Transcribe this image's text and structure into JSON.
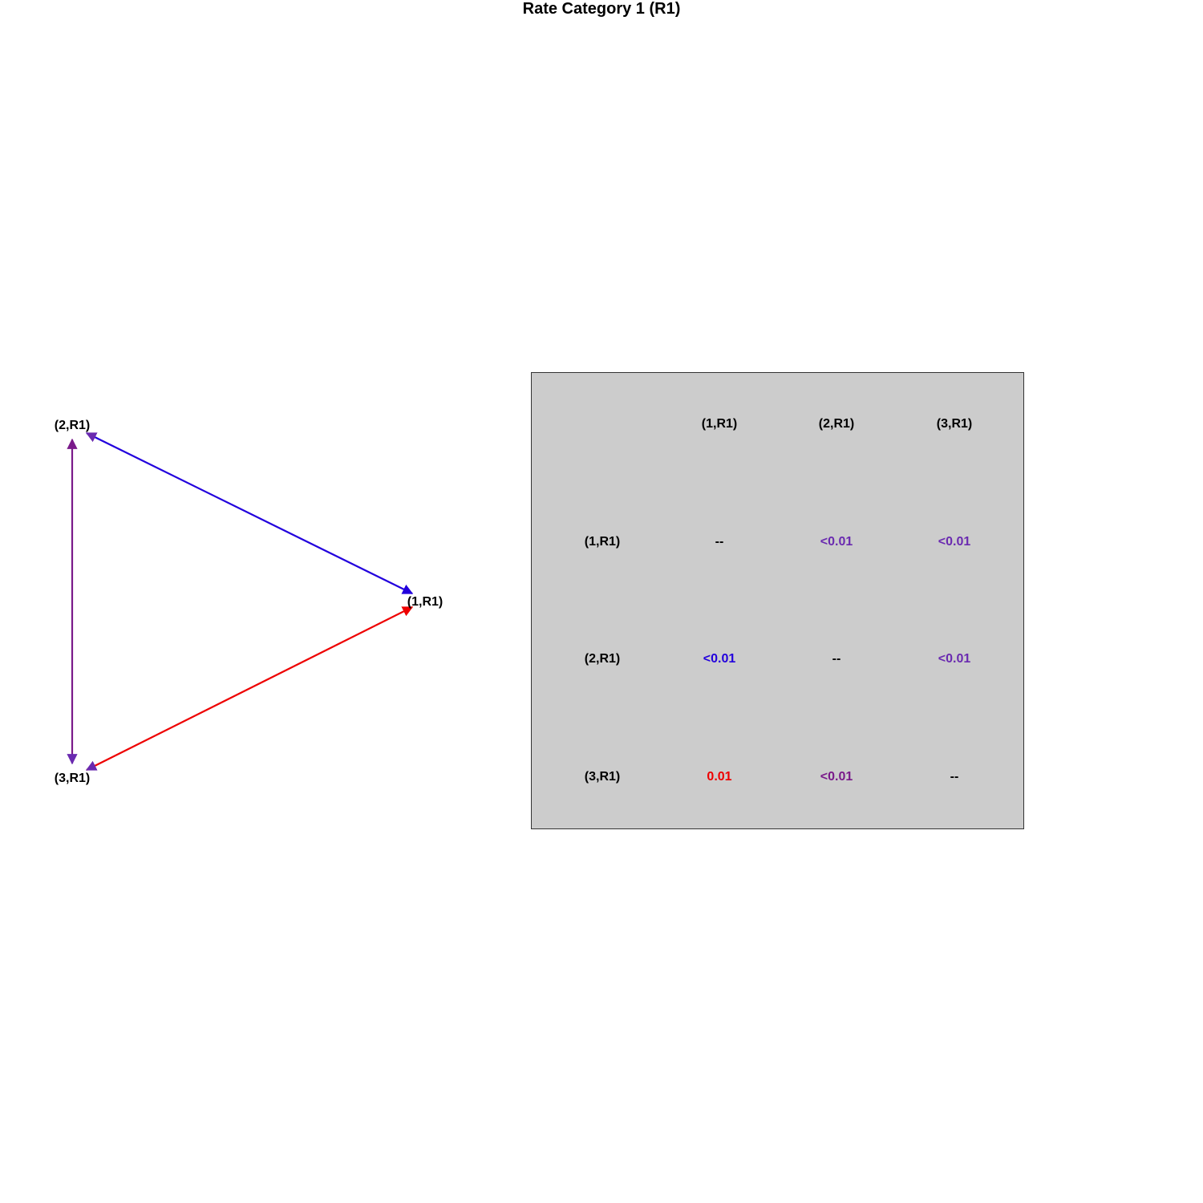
{
  "title": "Rate Category 1 (R1)",
  "colors": {
    "blue": "#2200dd",
    "red": "#ee0000",
    "purple": "#6a2ab0",
    "dark_purple": "#7a1a8a",
    "panel_bg": "#cccccc"
  },
  "graph": {
    "nodes": [
      {
        "id": "n1",
        "label": "(1,R1)"
      },
      {
        "id": "n2",
        "label": "(2,R1)"
      },
      {
        "id": "n3",
        "label": "(3,R1)"
      }
    ],
    "edges": [
      {
        "from": "n2",
        "to": "n1",
        "color": "blue",
        "arrow_from": true,
        "arrow_to": true
      },
      {
        "from": "n3",
        "to": "n1",
        "color": "red",
        "arrow_from": true,
        "arrow_to": true
      },
      {
        "from": "n2",
        "to": "n3",
        "color": "dark_purple",
        "arrow_from": true,
        "arrow_to": true
      }
    ]
  },
  "matrix": {
    "col_headers": [
      "(1,R1)",
      "(2,R1)",
      "(3,R1)"
    ],
    "row_headers": [
      "(1,R1)",
      "(2,R1)",
      "(3,R1)"
    ],
    "cells": [
      [
        {
          "text": "--",
          "color": "#000000"
        },
        {
          "text": "<0.01",
          "color": "#6a2ab0"
        },
        {
          "text": "<0.01",
          "color": "#6a2ab0"
        }
      ],
      [
        {
          "text": "<0.01",
          "color": "#2200dd"
        },
        {
          "text": "--",
          "color": "#000000"
        },
        {
          "text": "<0.01",
          "color": "#6a2ab0"
        }
      ],
      [
        {
          "text": "0.01",
          "color": "#ee0000"
        },
        {
          "text": "<0.01",
          "color": "#7a1a8a"
        },
        {
          "text": "--",
          "color": "#000000"
        }
      ]
    ]
  }
}
